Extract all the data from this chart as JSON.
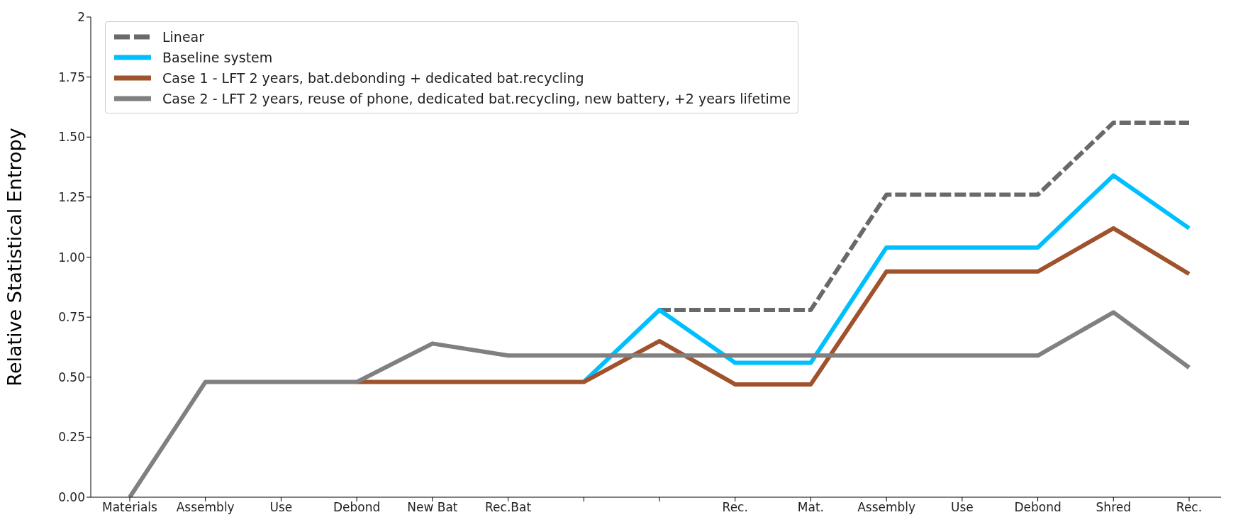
{
  "chart_data": {
    "type": "line",
    "ylabel": "Relative Statistical Entropy",
    "categories": [
      "Materials",
      "Assembly",
      "Use",
      "Debond",
      "New Bat",
      "Rec.Bat",
      null,
      null,
      "Rec.",
      "Mat.",
      "Assembly",
      "Use",
      "Debond",
      "Shred",
      "Rec."
    ],
    "series": [
      {
        "name": "Linear",
        "color": "#696969",
        "line_style": "dashed",
        "values": [
          null,
          null,
          null,
          null,
          null,
          null,
          null,
          0.78,
          0.78,
          0.78,
          1.26,
          1.26,
          1.26,
          1.56,
          1.56
        ]
      },
      {
        "name": "Baseline system",
        "color": "#00bfff",
        "values": [
          null,
          null,
          null,
          null,
          null,
          null,
          0.48,
          0.78,
          0.56,
          0.56,
          1.04,
          1.04,
          1.04,
          1.34,
          1.12
        ]
      },
      {
        "name": "Case 1 - LFT 2 years, bat.debonding + dedicated bat.recycling",
        "color": "#a0522d",
        "values": [
          null,
          null,
          null,
          0.48,
          0.48,
          0.48,
          0.48,
          0.65,
          0.47,
          0.47,
          0.94,
          0.94,
          0.94,
          1.12,
          0.93
        ]
      },
      {
        "name": "Case 2 - LFT 2 years, reuse of phone, dedicated bat.recycling, new battery, +2 years lifetime",
        "color": "#808080",
        "values": [
          0,
          0.48,
          0.48,
          0.48,
          0.64,
          0.59,
          0.59,
          0.59,
          0.59,
          0.59,
          0.59,
          0.59,
          0.59,
          0.77,
          0.54
        ]
      }
    ],
    "ylim": [
      0,
      2
    ],
    "yticks": [
      {
        "value": 0,
        "label": "0.00"
      },
      {
        "value": 0.25,
        "label": "0.25"
      },
      {
        "value": 0.5,
        "label": "0.50"
      },
      {
        "value": 0.75,
        "label": "0.75"
      },
      {
        "value": 1,
        "label": "1.00"
      },
      {
        "value": 1.25,
        "label": "1.25"
      },
      {
        "value": 1.5,
        "label": "1.50"
      },
      {
        "value": 1.75,
        "label": "1.75"
      },
      {
        "value": 2,
        "label": "2"
      }
    ],
    "grid": false,
    "legend": "top left",
    "marker": "none",
    "line_style": "solid"
  }
}
